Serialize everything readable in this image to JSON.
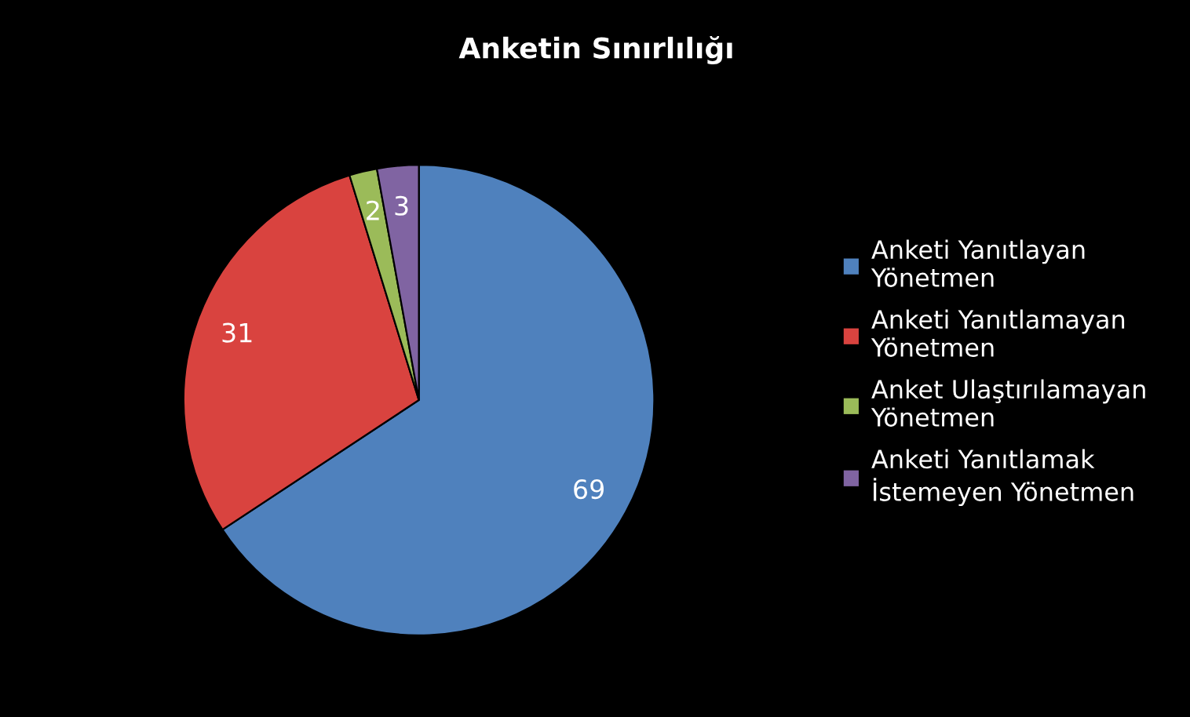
{
  "chart_data": {
    "type": "pie",
    "title": "Anketin Sınırlılığı",
    "categories": [
      "Anketi Yanıtlayan Yönetmen",
      "Anketi Yanıtlamayan Yönetmen",
      "Anket Ulaştırılamayan Yönetmen",
      "Anketi Yanıtlamak İstemeyen Yönetmen"
    ],
    "values": [
      69,
      31,
      2,
      3
    ],
    "colors": [
      "#4f81bd",
      "#d9433f",
      "#9bbb59",
      "#8064a2"
    ],
    "data_labels": true,
    "legend": "right"
  }
}
